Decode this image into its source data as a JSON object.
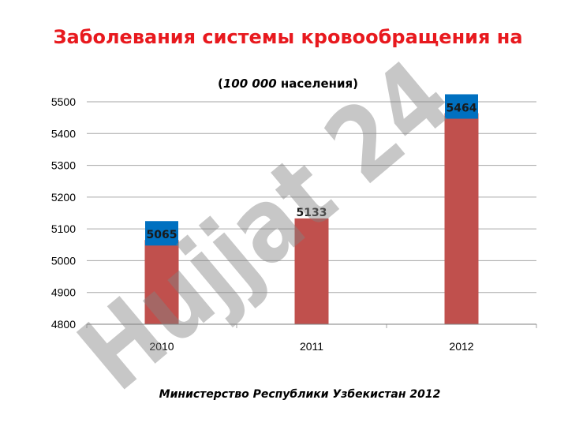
{
  "slide": {
    "title": "Заболевания системы кровообращения на",
    "subtitle_paren_open": "(",
    "subtitle_emph": "100 000",
    "subtitle_rest": " населения)",
    "footer": "Министерство Республики Узбекистан 2012",
    "watermark_text": "Hujjat 24"
  },
  "colors": {
    "title": "#e8191e",
    "bar": "#c0504d",
    "label_box": "#0070c0",
    "grid": "#a6a6a6",
    "watermark": "rgba(130,130,130,0.45)"
  },
  "chart_data": {
    "type": "bar",
    "categories": [
      "2010",
      "2011",
      "2012"
    ],
    "values": [
      5065,
      5133,
      5464
    ],
    "data_labels": [
      "5065",
      "5133",
      "5464"
    ],
    "label_boxed": [
      true,
      false,
      true
    ],
    "ylim": [
      4800,
      5500
    ],
    "yticks": [
      4800,
      4900,
      5000,
      5100,
      5200,
      5300,
      5400,
      5500
    ],
    "grid": true,
    "legend": "none"
  }
}
